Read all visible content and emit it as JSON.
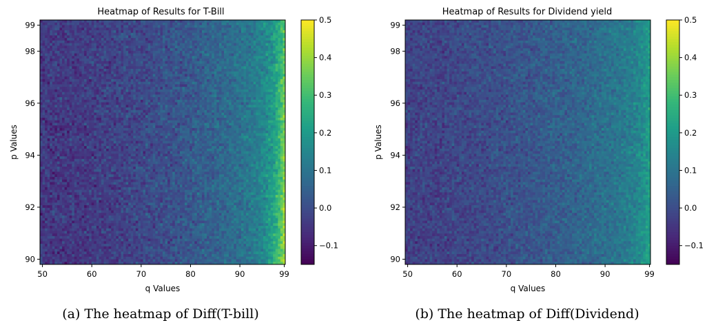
{
  "chart_data": [
    {
      "type": "heatmap",
      "title": "Heatmap of Results for T-Bill",
      "xlabel": "q Values",
      "ylabel": "p Values",
      "xlim": [
        49.5,
        99.2
      ],
      "ylim": [
        89.8,
        99.2
      ],
      "x_ticks": [
        50,
        60,
        70,
        80,
        90,
        99
      ],
      "y_ticks": [
        90,
        92,
        94,
        96,
        98,
        99
      ],
      "grid_cols": 100,
      "grid_rows": 95,
      "colormap": "viridis",
      "colorbar": {
        "min": -0.15,
        "max": 0.5,
        "ticks": [
          -0.1,
          0.0,
          0.1,
          0.2,
          0.3,
          0.4,
          0.5
        ],
        "tick_labels": [
          "−0.1",
          "0.0",
          "0.1",
          "0.2",
          "0.3",
          "0.4",
          "0.5"
        ]
      },
      "value_model": {
        "base": -0.02,
        "q_gain": 0.18,
        "q_power": 2.2,
        "edge_gain": 0.18,
        "edge_width": 2.2,
        "low_p_boost": 0.6,
        "noise": 0.045
      },
      "caption": "(a) The heatmap of Diff(T-bill)"
    },
    {
      "type": "heatmap",
      "title": "Heatmap of Results for Dividend yield",
      "xlabel": "q Values",
      "ylabel": "p Values",
      "xlim": [
        49.5,
        99.2
      ],
      "ylim": [
        89.8,
        99.2
      ],
      "x_ticks": [
        50,
        60,
        70,
        80,
        90,
        99
      ],
      "y_ticks": [
        90,
        92,
        94,
        96,
        98,
        99
      ],
      "grid_cols": 100,
      "grid_rows": 95,
      "colormap": "viridis",
      "colorbar": {
        "min": -0.15,
        "max": 0.5,
        "ticks": [
          -0.1,
          0.0,
          0.1,
          0.2,
          0.3,
          0.4,
          0.5
        ],
        "tick_labels": [
          "−0.1",
          "0.0",
          "0.1",
          "0.2",
          "0.3",
          "0.4",
          "0.5"
        ]
      },
      "value_model": {
        "base": 0.0,
        "q_gain": 0.14,
        "q_power": 2.0,
        "edge_gain": 0.07,
        "edge_width": 2.2,
        "low_p_boost": 0.3,
        "noise": 0.04
      },
      "caption": "(b) The heatmap of Diff(Dividend)"
    }
  ]
}
